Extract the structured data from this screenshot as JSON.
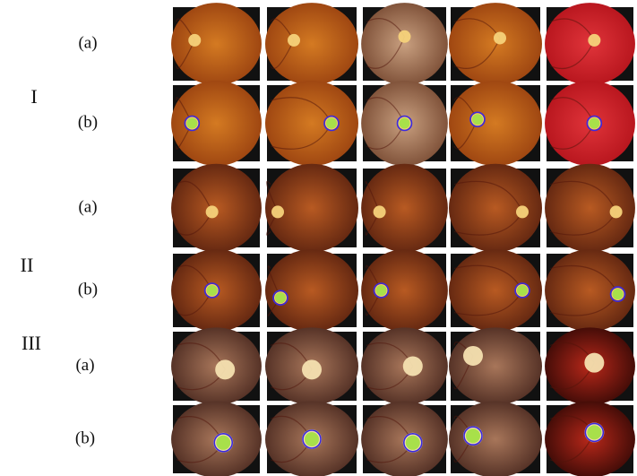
{
  "figure": {
    "groups": [
      {
        "label": "I",
        "rows": [
          "(a)",
          "(b)"
        ]
      },
      {
        "label": "II",
        "rows": [
          "(a)",
          "(b)"
        ]
      },
      {
        "label": "III",
        "rows": [
          "(a)",
          "(b)"
        ]
      }
    ]
  }
}
